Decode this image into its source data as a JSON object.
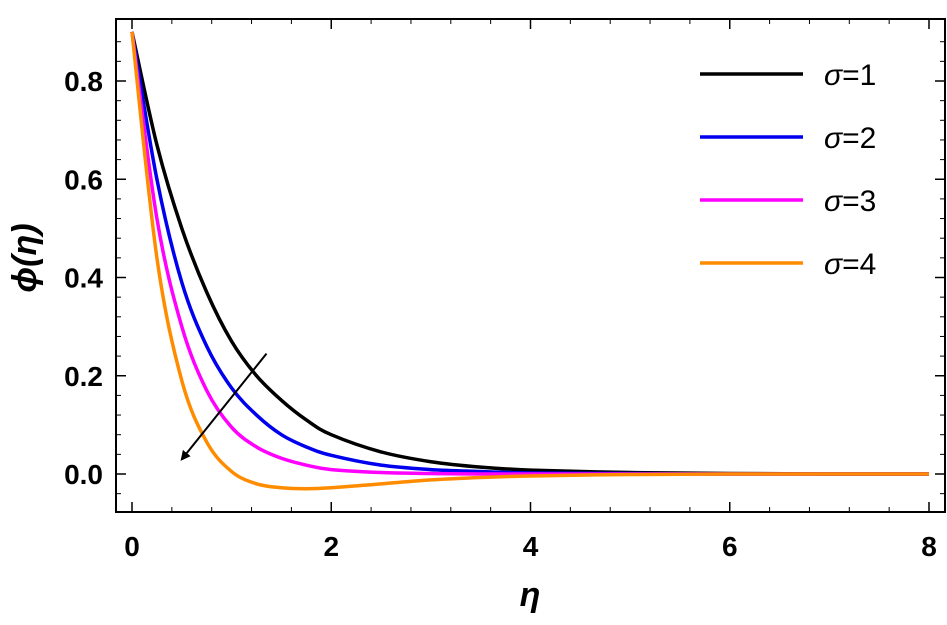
{
  "chart_data": {
    "type": "line",
    "xlabel": "η",
    "ylabel": "ϕ(η)",
    "xlim": [
      0,
      8
    ],
    "ylim": [
      -0.085,
      0.93
    ],
    "x_ticks": [
      "0",
      "2",
      "4",
      "6",
      "8"
    ],
    "y_ticks": [
      "0.0",
      "0.2",
      "0.4",
      "0.6",
      "0.8"
    ],
    "legend_position": "top-right",
    "series": [
      {
        "name": "σ=1",
        "legend_label": "σ=1",
        "color": "#000000",
        "x": [
          0,
          0.25,
          0.5,
          0.75,
          1,
          1.25,
          1.5,
          1.75,
          2,
          2.5,
          3,
          3.5,
          4,
          5,
          6,
          7,
          8
        ],
        "y": [
          0.9,
          0.67,
          0.5,
          0.37,
          0.27,
          0.2,
          0.15,
          0.11,
          0.08,
          0.045,
          0.025,
          0.014,
          0.008,
          0.003,
          0.001,
          0.0,
          0.0
        ]
      },
      {
        "name": "σ=2",
        "legend_label": "σ=2",
        "color": "#0000ee",
        "x": [
          0,
          0.25,
          0.5,
          0.75,
          1,
          1.25,
          1.5,
          1.75,
          2,
          2.5,
          3,
          3.5,
          4,
          5,
          6,
          7,
          8
        ],
        "y": [
          0.9,
          0.6,
          0.39,
          0.26,
          0.175,
          0.12,
          0.08,
          0.055,
          0.038,
          0.018,
          0.009,
          0.005,
          0.002,
          0.001,
          0.0,
          0.0,
          0.0
        ]
      },
      {
        "name": "σ=3",
        "legend_label": "σ=3",
        "color": "#ff00ff",
        "x": [
          0,
          0.25,
          0.5,
          0.75,
          1,
          1.25,
          1.5,
          1.75,
          2,
          2.5,
          3,
          3.5,
          4,
          5,
          6,
          7,
          8
        ],
        "y": [
          0.9,
          0.52,
          0.3,
          0.17,
          0.095,
          0.055,
          0.032,
          0.018,
          0.009,
          0.003,
          0.001,
          0.0,
          0.0,
          0.0,
          0.0,
          0.0,
          0.0
        ]
      },
      {
        "name": "σ=4",
        "legend_label": "σ=4",
        "color": "#ff8c00",
        "x": [
          0,
          0.25,
          0.5,
          0.75,
          1,
          1.25,
          1.5,
          1.75,
          2,
          2.5,
          3,
          3.5,
          4,
          5,
          6,
          7,
          8
        ],
        "y": [
          0.9,
          0.44,
          0.19,
          0.065,
          0.005,
          -0.02,
          -0.028,
          -0.03,
          -0.028,
          -0.02,
          -0.012,
          -0.007,
          -0.004,
          -0.001,
          0.0,
          0.0,
          0.0
        ]
      }
    ],
    "annotations": [
      {
        "type": "arrow",
        "from": [
          1.35,
          0.245
        ],
        "to": [
          0.5,
          0.03
        ]
      }
    ]
  }
}
